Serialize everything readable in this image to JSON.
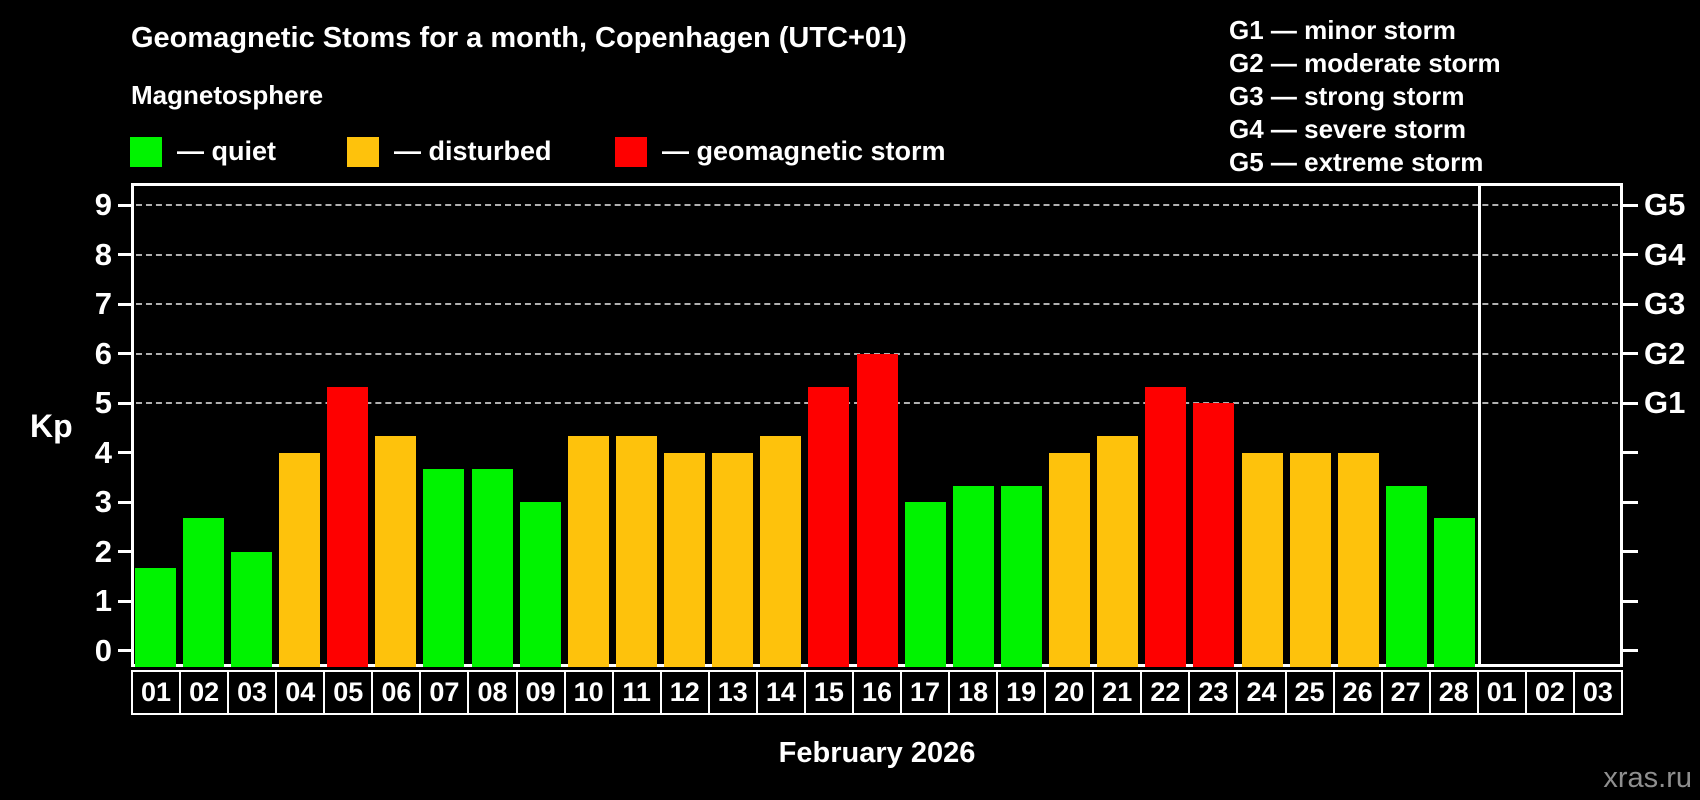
{
  "header": {
    "title": "Geomagnetic Stoms for a month, Copenhagen (UTC+01)"
  },
  "legend": {
    "heading": "Magnetosphere",
    "items": [
      {
        "key": "quiet",
        "label": "— quiet",
        "color": "#00f300"
      },
      {
        "key": "disturbed",
        "label": "— disturbed",
        "color": "#fec20c"
      },
      {
        "key": "storm",
        "label": "— geomagnetic storm",
        "color": "#fe0000"
      }
    ]
  },
  "g_legend": [
    {
      "label": "G1 — minor storm"
    },
    {
      "label": "G2 — moderate storm"
    },
    {
      "label": "G3 — strong storm"
    },
    {
      "label": "G4 — severe storm"
    },
    {
      "label": "G5 — extreme storm"
    }
  ],
  "watermark": "xras.ru",
  "chart_data": {
    "type": "bar",
    "title": "Geomagnetic Stoms for a month, Copenhagen (UTC+01)",
    "xlabel": "February 2026",
    "ylabel": "Kp",
    "ylim": [
      0,
      9
    ],
    "yticks": [
      0,
      1,
      2,
      3,
      4,
      5,
      6,
      7,
      8,
      9
    ],
    "grid": {
      "lines_at": [
        5,
        6,
        7,
        8,
        9
      ],
      "style": "dashed",
      "color": "#b0b0b0"
    },
    "right_scale": [
      {
        "kp": 5,
        "label": "G1"
      },
      {
        "kp": 6,
        "label": "G2"
      },
      {
        "kp": 7,
        "label": "G3"
      },
      {
        "kp": 8,
        "label": "G4"
      },
      {
        "kp": 9,
        "label": "G5"
      }
    ],
    "categories": [
      "01",
      "02",
      "03",
      "04",
      "05",
      "06",
      "07",
      "08",
      "09",
      "10",
      "11",
      "12",
      "13",
      "14",
      "15",
      "16",
      "17",
      "18",
      "19",
      "20",
      "21",
      "22",
      "23",
      "24",
      "25",
      "26",
      "27",
      "28",
      "01",
      "02",
      "03"
    ],
    "february_day_count": 28,
    "values": [
      1.67,
      2.67,
      2.0,
      4.0,
      5.33,
      4.33,
      3.67,
      3.67,
      3.0,
      4.33,
      4.33,
      4.0,
      4.0,
      4.33,
      5.33,
      6.0,
      3.0,
      3.33,
      3.33,
      4.0,
      4.33,
      5.33,
      5.0,
      4.0,
      4.0,
      4.0,
      3.33,
      2.67,
      null,
      null,
      null
    ],
    "statuses": [
      "quiet",
      "quiet",
      "quiet",
      "disturbed",
      "storm",
      "disturbed",
      "quiet",
      "quiet",
      "quiet",
      "disturbed",
      "disturbed",
      "disturbed",
      "disturbed",
      "disturbed",
      "storm",
      "storm",
      "quiet",
      "quiet",
      "quiet",
      "disturbed",
      "disturbed",
      "storm",
      "storm",
      "disturbed",
      "disturbed",
      "disturbed",
      "quiet",
      "quiet",
      null,
      null,
      null
    ],
    "status_colors": {
      "quiet": "#00f300",
      "disturbed": "#fec20c",
      "storm": "#fe0000"
    },
    "legend_position": "top"
  }
}
